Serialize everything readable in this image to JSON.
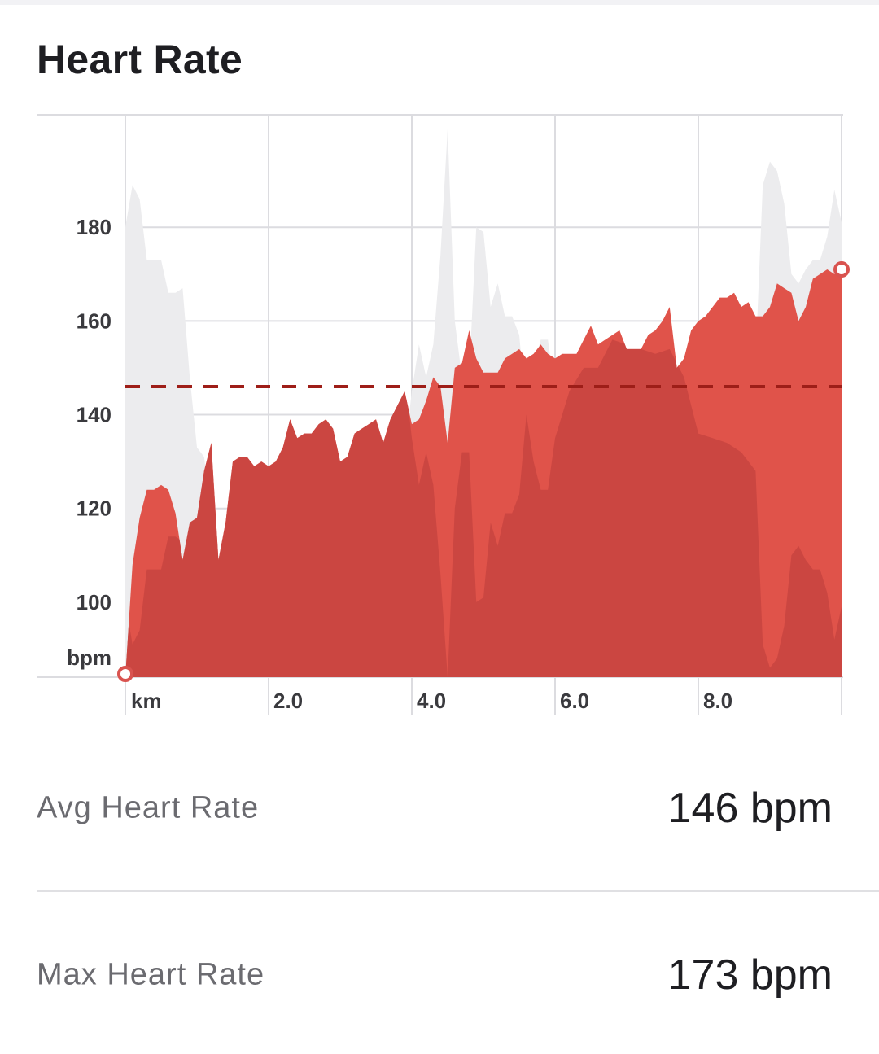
{
  "card": {
    "title": "Heart Rate"
  },
  "stats": {
    "avg": {
      "label": "Avg Heart Rate",
      "value": "146 bpm"
    },
    "max": {
      "label": "Max Heart Rate",
      "value": "173 bpm"
    }
  },
  "colors": {
    "hr_fill": "#e0534a",
    "hr_fill_dark": "#c94540",
    "elevation_fill": "#ececee",
    "avg_line": "#9e1e18",
    "grid": "#dcdce0",
    "marker": "#d9534f"
  },
  "chart_data": {
    "type": "area",
    "ylabel": "bpm",
    "xlabel": "km",
    "xlim": [
      0,
      10
    ],
    "ylim": [
      84,
      204
    ],
    "y_ticks": [
      100,
      120,
      140,
      160,
      180
    ],
    "y_tick_labels": [
      "100",
      "120",
      "140",
      "160",
      "180"
    ],
    "x_ticks": [
      2,
      4,
      6,
      8
    ],
    "x_tick_labels": [
      "2.0",
      "4.0",
      "6.0",
      "8.0"
    ],
    "avg_line": 146,
    "series": [
      {
        "x": [
          0,
          0.1,
          0.2,
          0.3,
          0.4,
          0.5,
          0.6,
          0.7,
          0.8,
          0.9,
          1.0,
          1.1,
          1.2,
          1.3,
          1.4,
          1.5,
          1.6,
          1.7,
          1.8,
          1.9,
          2.0,
          2.1,
          2.2,
          2.3,
          2.4,
          2.5,
          2.6,
          2.7,
          2.8,
          2.9,
          3.0,
          3.1,
          3.2,
          3.3,
          3.4,
          3.5,
          3.6,
          3.7,
          3.8,
          3.9,
          4.0,
          4.1,
          4.2,
          4.3,
          4.4,
          4.5,
          4.6,
          4.7,
          4.8,
          4.9,
          5.0,
          5.1,
          5.2,
          5.3,
          5.4,
          5.5,
          5.6,
          5.7,
          5.8,
          5.9,
          6.0,
          6.1,
          6.2,
          6.3,
          6.4,
          6.5,
          6.6,
          6.7,
          6.8,
          6.9,
          7.0,
          7.1,
          7.2,
          7.3,
          7.4,
          7.5,
          7.6,
          7.7,
          7.8,
          7.9,
          8.0,
          8.1,
          8.2,
          8.3,
          8.4,
          8.5,
          8.6,
          8.7,
          8.8,
          8.9,
          9.0,
          9.1,
          9.2,
          9.3,
          9.4,
          9.5,
          9.6,
          9.7,
          9.8,
          9.9,
          10.0
        ],
        "values": [
          84,
          108,
          118,
          124,
          124,
          125,
          124,
          119,
          109,
          117,
          118,
          128,
          134,
          109,
          117,
          130,
          131,
          131,
          129,
          130,
          129,
          130,
          133,
          139,
          135,
          136,
          136,
          138,
          139,
          137,
          130,
          131,
          136,
          137,
          138,
          139,
          134,
          139,
          142,
          145,
          138,
          139,
          143,
          148,
          146,
          134,
          150,
          151,
          158,
          152,
          149,
          149,
          149,
          152,
          153,
          154,
          152,
          153,
          155,
          153,
          152,
          153,
          153,
          153,
          156,
          159,
          155,
          156,
          157,
          158,
          154,
          154,
          154,
          157,
          158,
          160,
          163,
          150,
          152,
          158,
          160,
          161,
          163,
          165,
          165,
          166,
          163,
          164,
          161,
          161,
          163,
          168,
          167,
          166,
          160,
          163,
          169,
          170,
          171,
          170,
          171
        ]
      }
    ],
    "background_area": {
      "x": [
        0,
        0.1,
        0.2,
        0.3,
        0.4,
        0.5,
        0.6,
        0.7,
        0.8,
        0.9,
        1.0,
        1.1,
        1.2,
        1.3,
        1.4,
        1.5,
        1.6,
        1.7,
        1.8,
        1.9,
        2.0,
        2.2,
        2.4,
        2.6,
        2.8,
        3.0,
        3.2,
        3.4,
        3.6,
        3.8,
        4.0,
        4.1,
        4.2,
        4.3,
        4.4,
        4.5,
        4.6,
        4.7,
        4.8,
        4.9,
        5.0,
        5.1,
        5.2,
        5.3,
        5.4,
        5.5,
        5.6,
        5.7,
        5.8,
        5.9,
        6.0,
        6.2,
        6.4,
        6.6,
        6.8,
        7.0,
        7.2,
        7.4,
        7.6,
        7.8,
        8.0,
        8.2,
        8.4,
        8.6,
        8.8,
        8.9,
        9.0,
        9.1,
        9.2,
        9.3,
        9.4,
        9.5,
        9.6,
        9.7,
        9.8,
        9.9,
        10.0
      ],
      "values": [
        180,
        189,
        186,
        173,
        173,
        173,
        166,
        166,
        167,
        148,
        133,
        131,
        118,
        101,
        99,
        102,
        104,
        102,
        100,
        92,
        85,
        110,
        118,
        125,
        112,
        89,
        100,
        112,
        115,
        118,
        145,
        155,
        148,
        155,
        174,
        201,
        160,
        148,
        148,
        180,
        179,
        163,
        168,
        161,
        161,
        157,
        140,
        150,
        156,
        156,
        145,
        135,
        130,
        130,
        124,
        125,
        126,
        127,
        126,
        132,
        144,
        145,
        146,
        148,
        152,
        189,
        194,
        192,
        185,
        170,
        168,
        171,
        173,
        173,
        178,
        188,
        181
      ]
    }
  }
}
